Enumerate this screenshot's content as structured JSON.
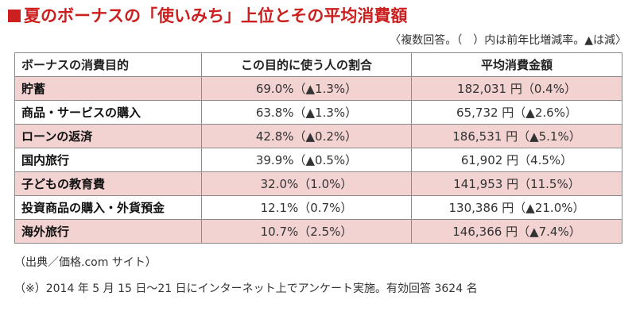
{
  "title": "夏のボーナスの「使いみち」上位とその平均消費額",
  "note": "〈複数回答。（　）内は前年比増減率。▲は減〉",
  "table": {
    "headers": [
      "ボーナスの消費目的",
      "この目的に使う人の割合",
      "平均消費金額"
    ],
    "rows": [
      {
        "purpose": "貯蓄",
        "share": "69.0%（▲1.3%）",
        "amount": "182,031 円（0.4%）"
      },
      {
        "purpose": "商品・サービスの購入",
        "share": "63.8%（▲1.3%）",
        "amount": "65,732 円（▲2.6%）"
      },
      {
        "purpose": "ローンの返済",
        "share": "42.8%（▲0.2%）",
        "amount": "186,531 円（▲5.1%）"
      },
      {
        "purpose": "国内旅行",
        "share": "39.9%（▲0.5%）",
        "amount": "61,902 円（4.5%）"
      },
      {
        "purpose": "子どもの教育費",
        "share": "32.0%（1.0%）",
        "amount": "141,953 円（11.5%）"
      },
      {
        "purpose": "投資商品の購入・外貨預金",
        "share": "12.1%（0.7%）",
        "amount": "130,386 円（▲21.0%）"
      },
      {
        "purpose": "海外旅行",
        "share": "10.7%（2.5%）",
        "amount": "146,366 円（▲7.4%）"
      }
    ]
  },
  "source": "（出典／価格.com サイト）",
  "footnote": "（※）2014 年 5 月 15 日〜21 日にインターネット上でアンケート実施。有効回答 3624 名",
  "colors": {
    "title": "#cc1f1f",
    "row_shade": "#f3d2d2",
    "border": "#8a8a8a"
  }
}
